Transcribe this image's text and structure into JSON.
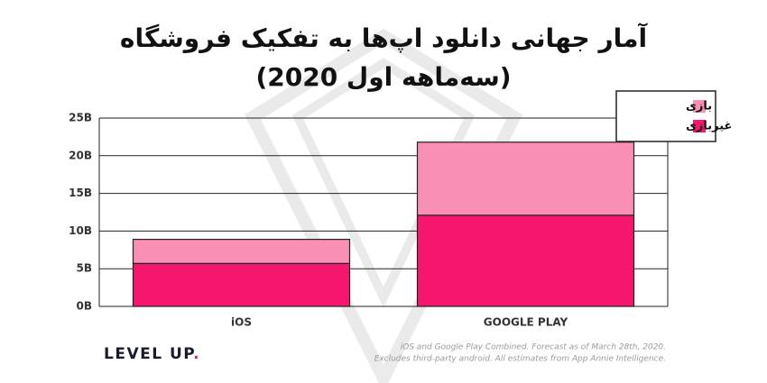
{
  "chart_data": {
    "type": "stacked_bar",
    "title": "آمار جهانی دانلود اپ‌ها به تفکیک فروشگاه",
    "subtitle": "(سه‌ماهه اول 2020)",
    "categories": [
      "iOS",
      "GOOGLE PLAY"
    ],
    "series": [
      {
        "name": "غیربازی",
        "color": "#f5166e",
        "values": [
          5.7,
          12.1
        ]
      },
      {
        "name": "بازی",
        "color": "#f98fb5",
        "values": [
          3.2,
          9.7
        ]
      }
    ],
    "ylim": [
      0,
      25
    ],
    "yticks": [
      {
        "value": 0,
        "label": "0B"
      },
      {
        "value": 5,
        "label": "5B"
      },
      {
        "value": 10,
        "label": "10B"
      },
      {
        "value": 15,
        "label": "15B"
      },
      {
        "value": 20,
        "label": "20B"
      },
      {
        "value": 25,
        "label": "25B"
      }
    ],
    "grid": true,
    "legend_position": "top-right",
    "brand": "LEVEL UP",
    "brand_dot": ".",
    "footnote": [
      "iOS and Google Play Combined. Forecast as of March 28th, 2020.",
      "Excludes third-party android. All estimates from App Annie Intelligence."
    ]
  }
}
